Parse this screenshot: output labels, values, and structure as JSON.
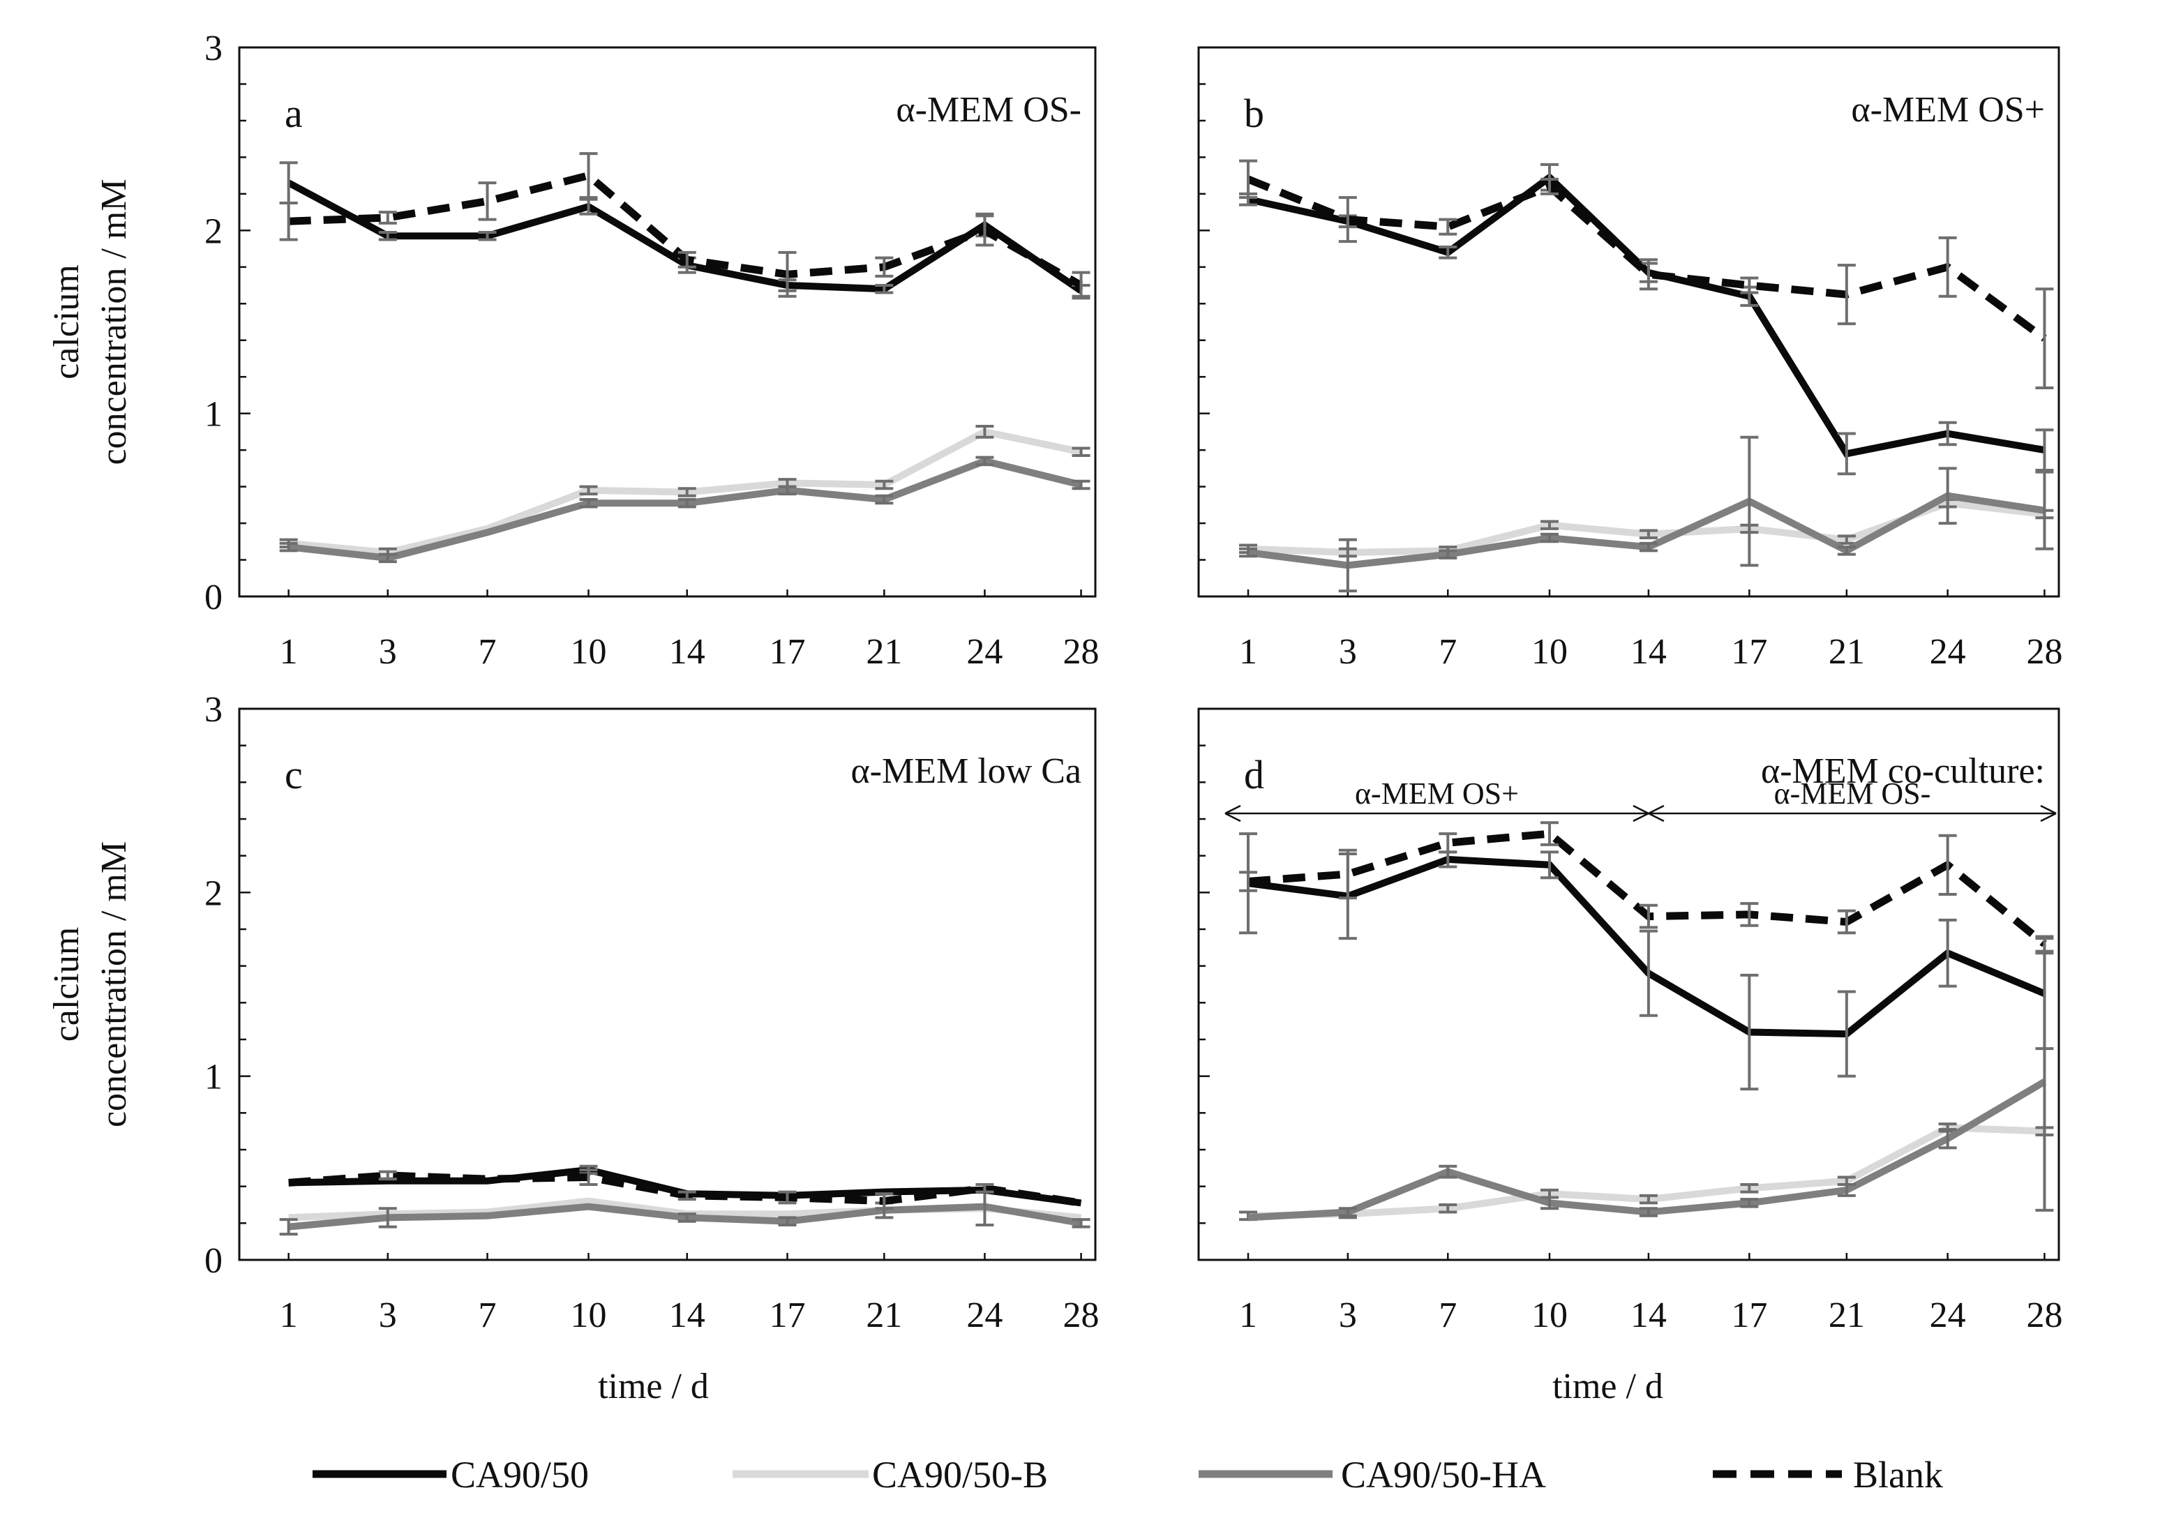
{
  "chart_data": [
    {
      "type": "line",
      "panel_letter": "a",
      "title": "α-MEM OS-",
      "categories": [
        "1",
        "3",
        "7",
        "10",
        "14",
        "17",
        "21",
        "24",
        "28"
      ],
      "ylabel": "calcium concentration / mM",
      "ylabel_lines": [
        "calcium",
        "concentration / mM"
      ],
      "xlabel": "",
      "ylim": [
        0,
        3
      ],
      "yticks": [
        "0",
        "1",
        "2",
        "3"
      ],
      "series": [
        {
          "name": "CA90/50",
          "values": [
            2.26,
            1.97,
            1.97,
            2.13,
            1.81,
            1.7,
            1.68,
            2.03,
            1.67
          ],
          "errors": [
            0.11,
            0.02,
            0.02,
            0.04,
            0.04,
            0.03,
            0.02,
            0.06,
            0.03
          ]
        },
        {
          "name": "CA90/50-B",
          "values": [
            0.29,
            0.24,
            0.37,
            0.58,
            0.57,
            0.62,
            0.61,
            0.9,
            0.79
          ],
          "errors": [
            0.02,
            0.02,
            0.01,
            0.02,
            0.02,
            0.02,
            0.02,
            0.03,
            0.02
          ]
        },
        {
          "name": "CA90/50-HA",
          "values": [
            0.27,
            0.21,
            0.35,
            0.51,
            0.51,
            0.58,
            0.53,
            0.74,
            0.61
          ],
          "errors": [
            0.02,
            0.02,
            0.01,
            0.02,
            0.02,
            0.02,
            0.02,
            0.02,
            0.02
          ]
        },
        {
          "name": "Blank",
          "values": [
            2.05,
            2.07,
            2.16,
            2.3,
            1.84,
            1.76,
            1.8,
            2.0,
            1.7
          ],
          "errors": [
            0.1,
            0.03,
            0.1,
            0.12,
            0.04,
            0.12,
            0.05,
            0.08,
            0.07
          ]
        }
      ]
    },
    {
      "type": "line",
      "panel_letter": "b",
      "title": "α-MEM OS+",
      "categories": [
        "1",
        "3",
        "7",
        "10",
        "14",
        "17",
        "21",
        "24",
        "28"
      ],
      "ylabel": "",
      "xlabel": "",
      "ylim": [
        0,
        3
      ],
      "yticks": [],
      "series": [
        {
          "name": "CA90/50",
          "values": [
            2.17,
            2.05,
            1.88,
            2.29,
            1.77,
            1.64,
            0.78,
            0.89,
            0.8
          ],
          "errors": [
            0.03,
            0.03,
            0.03,
            0.07,
            0.05,
            0.05,
            0.11,
            0.06,
            0.11
          ]
        },
        {
          "name": "CA90/50-B",
          "values": [
            0.26,
            0.24,
            0.25,
            0.39,
            0.34,
            0.37,
            0.31,
            0.51,
            0.45
          ],
          "errors": [
            0.02,
            0.02,
            0.02,
            0.02,
            0.02,
            0.02,
            0.02,
            0.02,
            0.02
          ]
        },
        {
          "name": "CA90/50-HA",
          "values": [
            0.24,
            0.17,
            0.23,
            0.32,
            0.27,
            0.52,
            0.25,
            0.55,
            0.47
          ],
          "errors": [
            0.02,
            0.14,
            0.02,
            0.02,
            0.02,
            0.35,
            0.02,
            0.15,
            0.21
          ]
        },
        {
          "name": "Blank",
          "values": [
            2.28,
            2.06,
            2.02,
            2.24,
            1.76,
            1.7,
            1.65,
            1.8,
            1.41
          ],
          "errors": [
            0.1,
            0.12,
            0.04,
            0.04,
            0.08,
            0.04,
            0.16,
            0.16,
            0.27
          ]
        }
      ]
    },
    {
      "type": "line",
      "panel_letter": "c",
      "title": "α-MEM low Ca",
      "categories": [
        "1",
        "3",
        "7",
        "10",
        "14",
        "17",
        "21",
        "24",
        "28"
      ],
      "ylabel": "calcium concentration / mM",
      "ylabel_lines": [
        "calcium",
        "concentration / mM"
      ],
      "xlabel": "time / d",
      "ylim": [
        0,
        3
      ],
      "yticks": [
        "0",
        "1",
        "2",
        "3"
      ],
      "series": [
        {
          "name": "CA90/50",
          "values": [
            0.42,
            0.43,
            0.43,
            0.49,
            0.36,
            0.35,
            0.37,
            0.38,
            0.31
          ],
          "errors": [
            0.01,
            0.01,
            0.01,
            0.02,
            0.01,
            0.01,
            0.01,
            0.01,
            0.01
          ]
        },
        {
          "name": "CA90/50-B",
          "values": [
            0.23,
            0.25,
            0.26,
            0.32,
            0.25,
            0.25,
            0.27,
            0.28,
            0.23
          ],
          "errors": [
            0.01,
            0.01,
            0.01,
            0.01,
            0.01,
            0.01,
            0.01,
            0.01,
            0.01
          ]
        },
        {
          "name": "CA90/50-HA",
          "values": [
            0.18,
            0.23,
            0.24,
            0.29,
            0.23,
            0.21,
            0.27,
            0.29,
            0.2
          ],
          "errors": [
            0.04,
            0.05,
            0.01,
            0.01,
            0.02,
            0.02,
            0.04,
            0.1,
            0.02
          ]
        },
        {
          "name": "Blank",
          "values": [
            0.42,
            0.46,
            0.44,
            0.45,
            0.35,
            0.34,
            0.32,
            0.39,
            0.31
          ],
          "errors": [
            0.01,
            0.02,
            0.01,
            0.04,
            0.02,
            0.03,
            0.04,
            0.02,
            0.01
          ]
        }
      ]
    },
    {
      "type": "line",
      "panel_letter": "d",
      "title": "α-MEM co-culture:",
      "phase_left": "α-MEM OS+",
      "phase_right": "α-MEM OS-",
      "categories": [
        "1",
        "3",
        "7",
        "10",
        "14",
        "17",
        "21",
        "24",
        "28"
      ],
      "ylabel": "",
      "xlabel": "time / d",
      "ylim": [
        0,
        3
      ],
      "yticks": [],
      "series": [
        {
          "name": "CA90/50",
          "values": [
            2.05,
            1.98,
            2.18,
            2.15,
            1.56,
            1.24,
            1.23,
            1.67,
            1.45
          ],
          "errors": [
            0.27,
            0.23,
            0.04,
            0.07,
            0.23,
            0.31,
            0.23,
            0.18,
            0.3
          ]
        },
        {
          "name": "CA90/50-B",
          "values": [
            0.24,
            0.25,
            0.28,
            0.36,
            0.33,
            0.39,
            0.43,
            0.72,
            0.7
          ],
          "errors": [
            0.02,
            0.02,
            0.02,
            0.02,
            0.02,
            0.02,
            0.02,
            0.02,
            0.02
          ]
        },
        {
          "name": "CA90/50-HA",
          "values": [
            0.23,
            0.26,
            0.48,
            0.31,
            0.26,
            0.31,
            0.38,
            0.66,
            0.97
          ],
          "errors": [
            0.01,
            0.02,
            0.03,
            0.03,
            0.02,
            0.02,
            0.03,
            0.05,
            0.7
          ]
        },
        {
          "name": "Blank",
          "values": [
            2.06,
            2.1,
            2.27,
            2.32,
            1.87,
            1.88,
            1.84,
            2.15,
            1.72
          ],
          "errors": [
            0.05,
            0.13,
            0.05,
            0.06,
            0.06,
            0.06,
            0.06,
            0.16,
            0.04
          ]
        }
      ]
    }
  ],
  "legend": [
    {
      "name": "CA90/50",
      "color": "#0a0a0a",
      "dash": false
    },
    {
      "name": "CA90/50-B",
      "color": "#d9d9d9",
      "dash": false
    },
    {
      "name": "CA90/50-HA",
      "color": "#7f7f7f",
      "dash": false
    },
    {
      "name": "Blank",
      "color": "#0a0a0a",
      "dash": true
    }
  ],
  "colors": {
    "CA90/50": "#0a0a0a",
    "CA90/50-B": "#d9d9d9",
    "CA90/50-HA": "#7f7f7f",
    "Blank": "#0a0a0a",
    "error_bar": "#6e6e6e",
    "axis": "#111111"
  }
}
